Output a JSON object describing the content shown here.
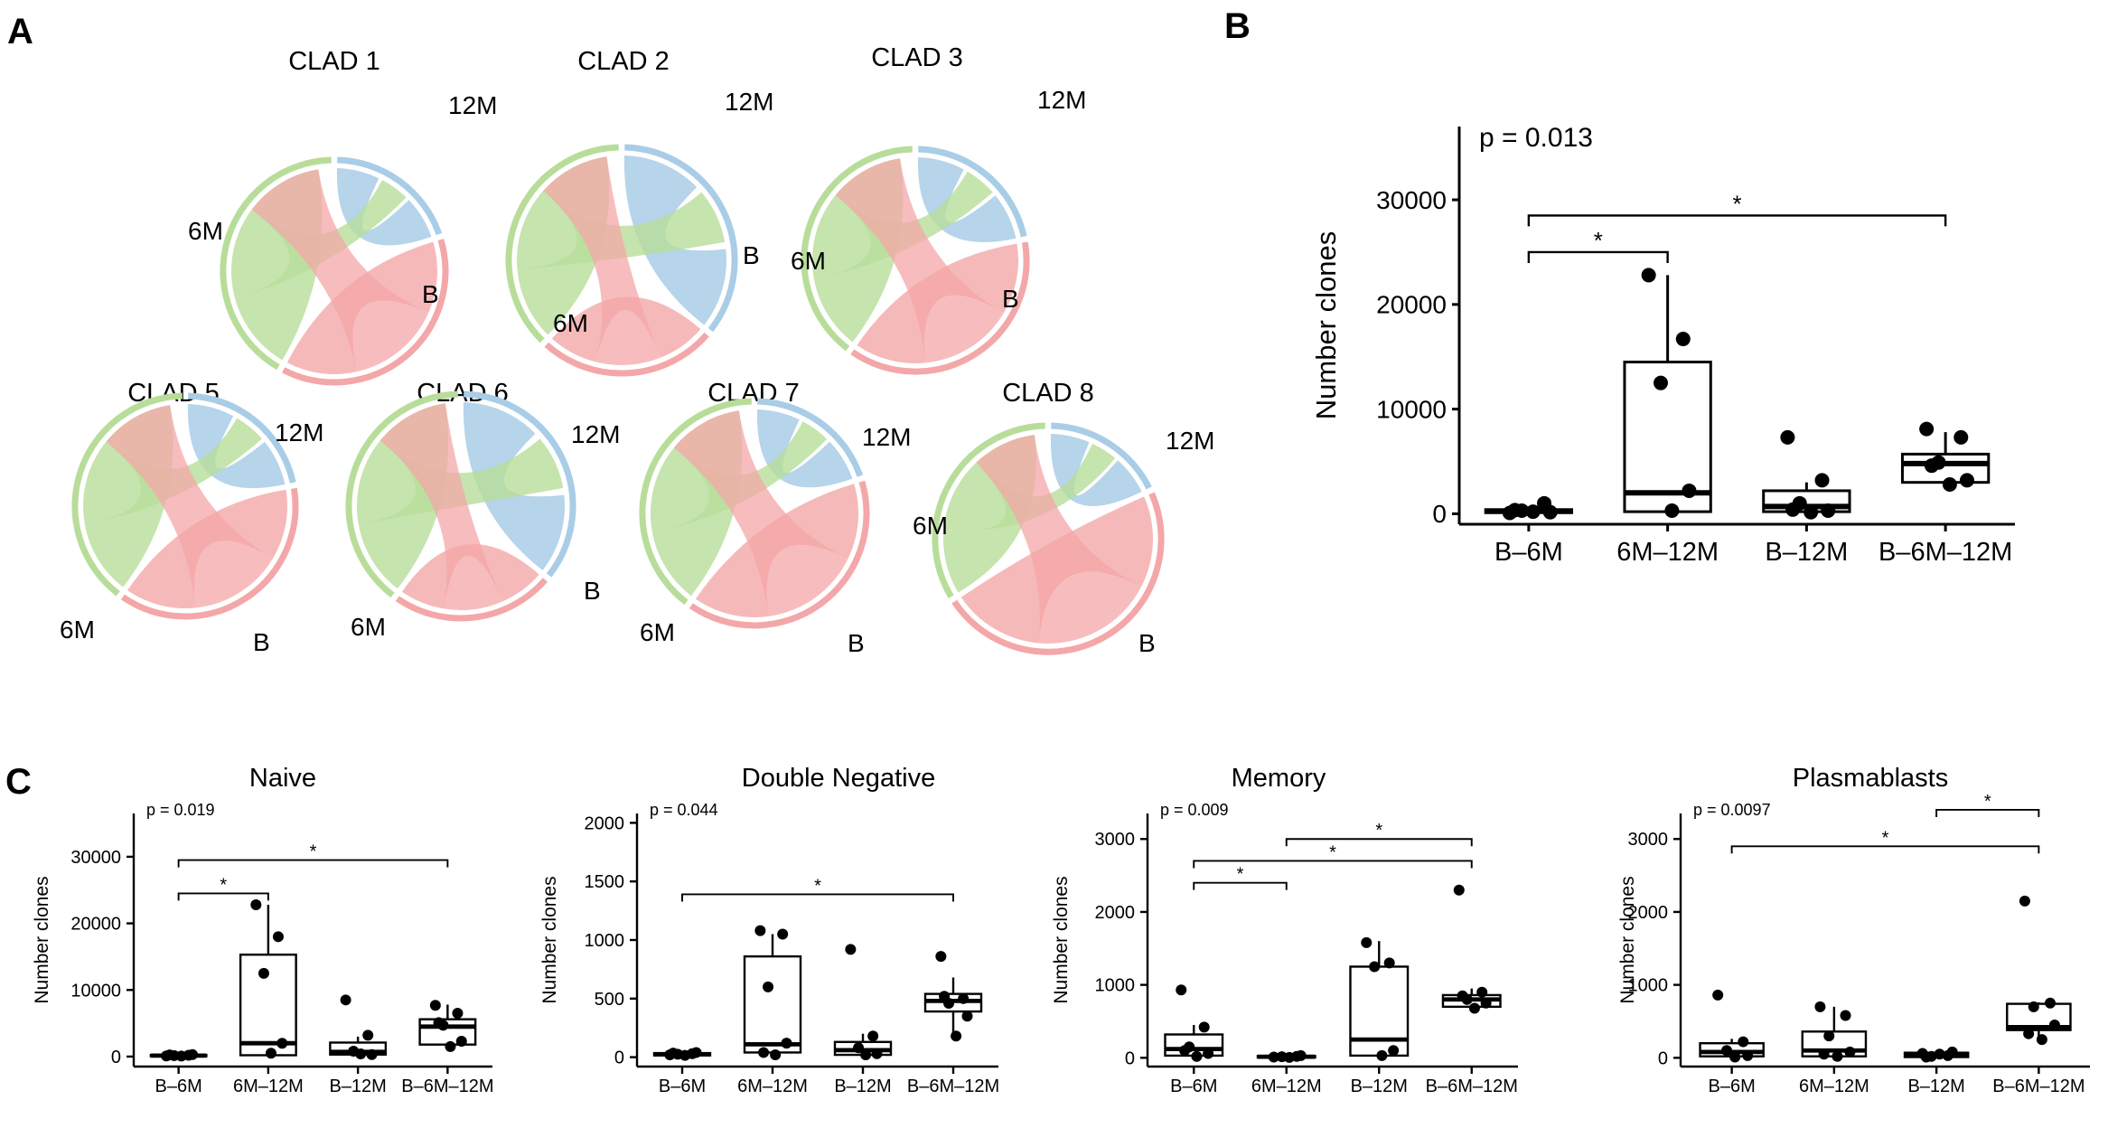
{
  "panels": {
    "A": "A",
    "B": "B",
    "C": "C"
  },
  "colors": {
    "B": "#f4a7a8",
    "6M": "#b8dd9a",
    "12M": "#a9cde6",
    "box": "#000000"
  },
  "chord_diagrams": [
    {
      "title": "CLAD 1",
      "labels": {
        "12M": "12M",
        "6M": "6M",
        "B": "B"
      },
      "sectors": {
        "12M": 0.2,
        "B": 0.38,
        "6M": 0.42
      }
    },
    {
      "title": "CLAD 2",
      "labels": {
        "12M": "12M",
        "6M": "6M",
        "B": "B"
      },
      "sectors": {
        "12M": 0.36,
        "B": 0.26,
        "6M": 0.38
      }
    },
    {
      "title": "CLAD 3",
      "labels": {
        "12M": "12M",
        "6M": "6M",
        "B": "B"
      },
      "sectors": {
        "12M": 0.22,
        "B": 0.38,
        "6M": 0.4
      }
    },
    {
      "title": "CLAD 5",
      "labels": {
        "12M": "12M",
        "6M": "6M",
        "B": "B"
      },
      "sectors": {
        "12M": 0.22,
        "B": 0.38,
        "6M": 0.4
      }
    },
    {
      "title": "CLAD 6",
      "labels": {
        "12M": "12M",
        "6M": "6M",
        "B": "B"
      },
      "sectors": {
        "12M": 0.36,
        "B": 0.24,
        "6M": 0.4
      }
    },
    {
      "title": "CLAD 7",
      "labels": {
        "12M": "12M",
        "6M": "6M",
        "B": "B"
      },
      "sectors": {
        "12M": 0.2,
        "B": 0.4,
        "6M": 0.4
      }
    },
    {
      "title": "CLAD 8",
      "labels": {
        "12M": "12M",
        "6M": "6M",
        "B": "B"
      },
      "sectors": {
        "12M": 0.18,
        "B": 0.48,
        "6M": 0.34
      }
    }
  ],
  "chart_data": [
    {
      "id": "B",
      "type": "box",
      "title": "",
      "ylabel": "Number clones",
      "ylim": [
        -1000,
        37000
      ],
      "yticks": [
        0,
        10000,
        20000,
        30000
      ],
      "categories": [
        "B–6M",
        "6M–12M",
        "B–12M",
        "B–6M–12M"
      ],
      "p_label": "p = 0.013",
      "boxes": [
        {
          "q1": 100,
          "median": 250,
          "q3": 400,
          "wlo": 0,
          "whi": 600,
          "points": [
            80,
            1000,
            300,
            150,
            200,
            350
          ]
        },
        {
          "q1": 200,
          "median": 2000,
          "q3": 14500,
          "wlo": 0,
          "whi": 22800,
          "points": [
            22800,
            16700,
            12500,
            2200,
            300
          ]
        },
        {
          "q1": 200,
          "median": 700,
          "q3": 2200,
          "wlo": 0,
          "whi": 3000,
          "points": [
            7300,
            3200,
            1000,
            300,
            150,
            400
          ]
        },
        {
          "q1": 3000,
          "median": 4800,
          "q3": 5700,
          "wlo": 2500,
          "whi": 7800,
          "points": [
            8100,
            7300,
            4900,
            3200,
            2800,
            4600
          ]
        }
      ],
      "sig": [
        {
          "from": 0,
          "to": 1,
          "y": 25000,
          "label": "*"
        },
        {
          "from": 0,
          "to": 3,
          "y": 28500,
          "label": "*"
        }
      ]
    },
    {
      "id": "C-naive",
      "type": "box",
      "title": "Naive",
      "ylabel": "Number clones",
      "ylim": [
        -1500,
        36500
      ],
      "yticks": [
        0,
        10000,
        20000,
        30000
      ],
      "categories": [
        "B–6M",
        "6M–12M",
        "B–12M",
        "B–6M–12M"
      ],
      "p_label": "p = 0.019",
      "boxes": [
        {
          "q1": 50,
          "median": 150,
          "q3": 250,
          "wlo": 0,
          "whi": 400,
          "points": [
            100,
            200,
            150,
            300,
            80,
            250
          ]
        },
        {
          "q1": 200,
          "median": 2000,
          "q3": 15300,
          "wlo": 0,
          "whi": 22800,
          "points": [
            22800,
            18000,
            12500,
            2000,
            500
          ]
        },
        {
          "q1": 300,
          "median": 700,
          "q3": 2100,
          "wlo": 0,
          "whi": 3000,
          "points": [
            8500,
            3200,
            800,
            300,
            400
          ]
        },
        {
          "q1": 1800,
          "median": 4500,
          "q3": 5600,
          "wlo": 900,
          "whi": 7800,
          "points": [
            7700,
            6500,
            4700,
            2300,
            1500,
            5100
          ]
        }
      ],
      "sig": [
        {
          "from": 0,
          "to": 1,
          "y": 24500,
          "label": "*"
        },
        {
          "from": 0,
          "to": 3,
          "y": 29500,
          "label": "*"
        }
      ]
    },
    {
      "id": "C-dn",
      "type": "box",
      "title": "Double Negative",
      "ylabel": "Number clones",
      "ylim": [
        -80,
        2080
      ],
      "yticks": [
        0,
        500,
        1000,
        1500,
        2000
      ],
      "categories": [
        "B–6M",
        "6M–12M",
        "B–12M",
        "B–6M–12M"
      ],
      "p_label": "p = 0.044",
      "boxes": [
        {
          "q1": 15,
          "median": 25,
          "q3": 35,
          "wlo": 5,
          "whi": 50,
          "points": [
            20,
            30,
            25,
            40,
            15,
            35
          ]
        },
        {
          "q1": 40,
          "median": 110,
          "q3": 860,
          "wlo": 0,
          "whi": 1050,
          "points": [
            1080,
            1050,
            600,
            120,
            20,
            40
          ]
        },
        {
          "q1": 20,
          "median": 60,
          "q3": 130,
          "wlo": 0,
          "whi": 200,
          "points": [
            920,
            180,
            80,
            30,
            20
          ]
        },
        {
          "q1": 390,
          "median": 480,
          "q3": 540,
          "wlo": 180,
          "whi": 680,
          "points": [
            860,
            500,
            460,
            350,
            180,
            520
          ]
        }
      ],
      "sig": [
        {
          "from": 0,
          "to": 3,
          "y": 1390,
          "label": "*"
        }
      ]
    },
    {
      "id": "C-memory",
      "type": "box",
      "title": "Memory",
      "ylabel": "Number clones",
      "ylim": [
        -120,
        3350
      ],
      "yticks": [
        0,
        1000,
        2000,
        3000
      ],
      "categories": [
        "B–6M",
        "6M–12M",
        "B–12M",
        "B–6M–12M"
      ],
      "p_label": "p = 0.009",
      "boxes": [
        {
          "q1": 30,
          "median": 120,
          "q3": 320,
          "wlo": 0,
          "whi": 450,
          "points": [
            930,
            420,
            150,
            60,
            20,
            100
          ]
        },
        {
          "q1": 5,
          "median": 15,
          "q3": 25,
          "wlo": 0,
          "whi": 40,
          "points": [
            10,
            20,
            15,
            30,
            5
          ]
        },
        {
          "q1": 30,
          "median": 250,
          "q3": 1250,
          "wlo": 0,
          "whi": 1600,
          "points": [
            1580,
            1300,
            1250,
            100,
            30
          ]
        },
        {
          "q1": 700,
          "median": 800,
          "q3": 860,
          "wlo": 650,
          "whi": 950,
          "points": [
            2300,
            900,
            800,
            750,
            680,
            850
          ]
        }
      ],
      "sig": [
        {
          "from": 0,
          "to": 1,
          "y": 2400,
          "label": "*"
        },
        {
          "from": 0,
          "to": 3,
          "y": 2700,
          "label": "*"
        },
        {
          "from": 1,
          "to": 3,
          "y": 3000,
          "label": "*"
        }
      ]
    },
    {
      "id": "C-plasmablasts",
      "type": "box",
      "title": "Plasmablasts",
      "ylabel": "Number clones",
      "ylim": [
        -120,
        3350
      ],
      "yticks": [
        0,
        1000,
        2000,
        3000
      ],
      "categories": [
        "B–6M",
        "6M–12M",
        "B–12M",
        "B–6M–12M"
      ],
      "p_label": "p = 0.0097",
      "boxes": [
        {
          "q1": 20,
          "median": 80,
          "q3": 200,
          "wlo": 0,
          "whi": 260,
          "points": [
            860,
            220,
            100,
            30,
            10
          ]
        },
        {
          "q1": 20,
          "median": 100,
          "q3": 360,
          "wlo": 0,
          "whi": 700,
          "points": [
            700,
            580,
            300,
            80,
            20,
            50
          ]
        },
        {
          "q1": 10,
          "median": 40,
          "q3": 70,
          "wlo": 0,
          "whi": 100,
          "points": [
            60,
            30,
            20,
            80,
            50,
            10
          ]
        },
        {
          "q1": 380,
          "median": 420,
          "q3": 740,
          "wlo": 230,
          "whi": 760,
          "points": [
            2150,
            750,
            700,
            450,
            250,
            330
          ]
        }
      ],
      "sig": [
        {
          "from": 0,
          "to": 3,
          "y": 2900,
          "label": "*"
        },
        {
          "from": 2,
          "to": 3,
          "y": 3400,
          "label": "*"
        }
      ]
    }
  ]
}
